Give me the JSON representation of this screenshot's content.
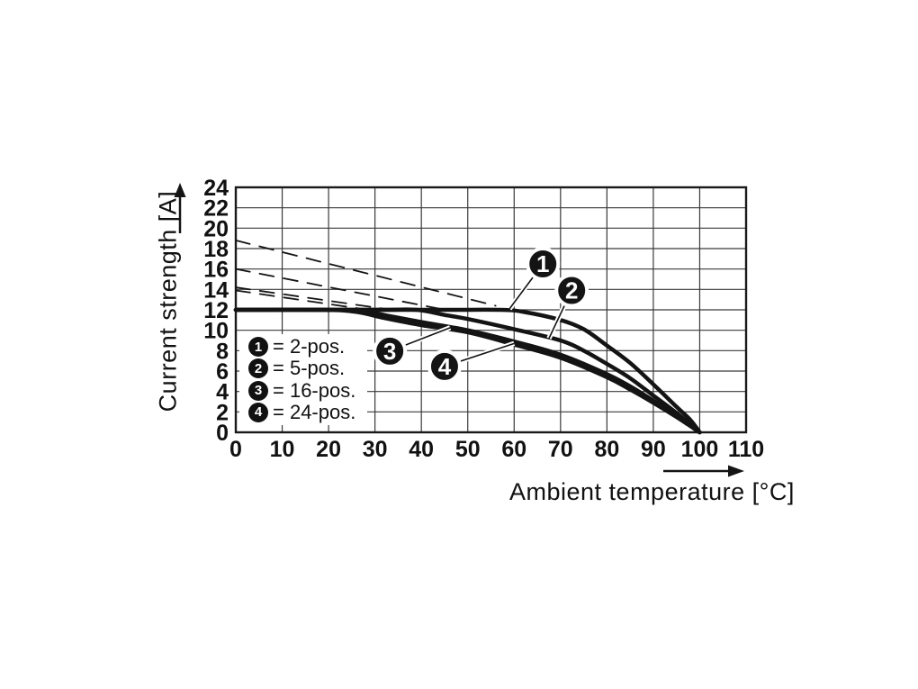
{
  "colors": {
    "line": "#141414",
    "grid": "#3a3a3a",
    "background": "#ffffff",
    "callout_fill": "#141414",
    "callout_text": "#ffffff"
  },
  "chart_data": {
    "type": "line",
    "title": "",
    "xlabel": "Ambient temperature [°C]",
    "ylabel": "Current strength [A]",
    "xlim": [
      0,
      110
    ],
    "ylim": [
      0,
      24
    ],
    "xticks": [
      0,
      10,
      20,
      30,
      40,
      50,
      60,
      70,
      80,
      90,
      100,
      110
    ],
    "yticks": [
      0,
      2,
      4,
      6,
      8,
      10,
      12,
      14,
      16,
      18,
      20,
      22,
      24
    ],
    "grid": true,
    "current_limit_A": 12,
    "series": [
      {
        "name": "2-pos.",
        "symbol": "1",
        "style": "solid",
        "points": [
          [
            0,
            12
          ],
          [
            45,
            12
          ],
          [
            57,
            12
          ],
          [
            62,
            11.8
          ],
          [
            70,
            11
          ],
          [
            75,
            10.1
          ],
          [
            80,
            8.5
          ],
          [
            85,
            6.8
          ],
          [
            90,
            4.7
          ],
          [
            95,
            2.5
          ],
          [
            98,
            1.2
          ],
          [
            100,
            0
          ]
        ]
      },
      {
        "name": "5-pos.",
        "symbol": "2",
        "style": "solid",
        "points": [
          [
            0,
            12
          ],
          [
            30,
            12
          ],
          [
            39,
            12
          ],
          [
            45,
            11.5
          ],
          [
            50,
            11.1
          ],
          [
            60,
            10.1
          ],
          [
            70,
            9
          ],
          [
            75,
            8
          ],
          [
            80,
            6.7
          ],
          [
            85,
            5.3
          ],
          [
            90,
            3.6
          ],
          [
            95,
            1.9
          ],
          [
            100,
            0
          ]
        ]
      },
      {
        "name": "16-pos.",
        "symbol": "3",
        "style": "solid",
        "points": [
          [
            0,
            12
          ],
          [
            20,
            12
          ],
          [
            27,
            11.9
          ],
          [
            33,
            11.4
          ],
          [
            40,
            10.8
          ],
          [
            50,
            10
          ],
          [
            60,
            8.9
          ],
          [
            70,
            7.6
          ],
          [
            80,
            5.7
          ],
          [
            85,
            4.5
          ],
          [
            90,
            3.1
          ],
          [
            95,
            1.6
          ],
          [
            100,
            0
          ]
        ]
      },
      {
        "name": "24-pos.",
        "symbol": "4",
        "style": "solid",
        "points": [
          [
            0,
            12
          ],
          [
            19,
            12
          ],
          [
            26,
            11.8
          ],
          [
            32,
            11.2
          ],
          [
            40,
            10.5
          ],
          [
            50,
            9.8
          ],
          [
            60,
            8.6
          ],
          [
            70,
            7.3
          ],
          [
            80,
            5.4
          ],
          [
            85,
            4.2
          ],
          [
            90,
            2.9
          ],
          [
            95,
            1.5
          ],
          [
            100,
            0
          ]
        ]
      },
      {
        "name": "2-pos. unrestricted (dashed)",
        "symbol": "1",
        "style": "dashed",
        "points": [
          [
            0,
            18.8
          ],
          [
            56,
            12.4
          ]
        ]
      },
      {
        "name": "5-pos. unrestricted (dashed)",
        "symbol": "2",
        "style": "dashed",
        "points": [
          [
            0,
            16
          ],
          [
            44,
            12.1
          ]
        ]
      },
      {
        "name": "16-pos. unrestricted (dashed)",
        "symbol": "3",
        "style": "dashed",
        "points": [
          [
            0,
            14.2
          ],
          [
            32,
            12.1
          ]
        ]
      },
      {
        "name": "24-pos. unrestricted (dashed)",
        "symbol": "4",
        "style": "dashed",
        "points": [
          [
            0,
            13.9
          ],
          [
            30,
            11.9
          ]
        ]
      }
    ],
    "callouts": [
      {
        "symbol": "1",
        "at": [
          66.2,
          16.5
        ],
        "tip": [
          59,
          12.1
        ]
      },
      {
        "symbol": "2",
        "at": [
          72.4,
          13.9
        ],
        "tip": [
          67.5,
          9.2
        ]
      },
      {
        "symbol": "3",
        "at": [
          33.2,
          7.95
        ],
        "tip": [
          46.2,
          10.25
        ]
      },
      {
        "symbol": "4",
        "at": [
          45.0,
          6.45
        ],
        "tip": [
          60,
          8.7
        ]
      }
    ],
    "legend": {
      "position": "inside-bottom-left",
      "items": [
        {
          "symbol": "1",
          "label": "= 2-pos."
        },
        {
          "symbol": "2",
          "label": "= 5-pos."
        },
        {
          "symbol": "3",
          "label": "= 16-pos."
        },
        {
          "symbol": "4",
          "label": "= 24-pos."
        }
      ]
    }
  },
  "icons": {
    "y_axis_arrow": "arrow-up-icon",
    "x_axis_arrow": "arrow-right-icon"
  }
}
